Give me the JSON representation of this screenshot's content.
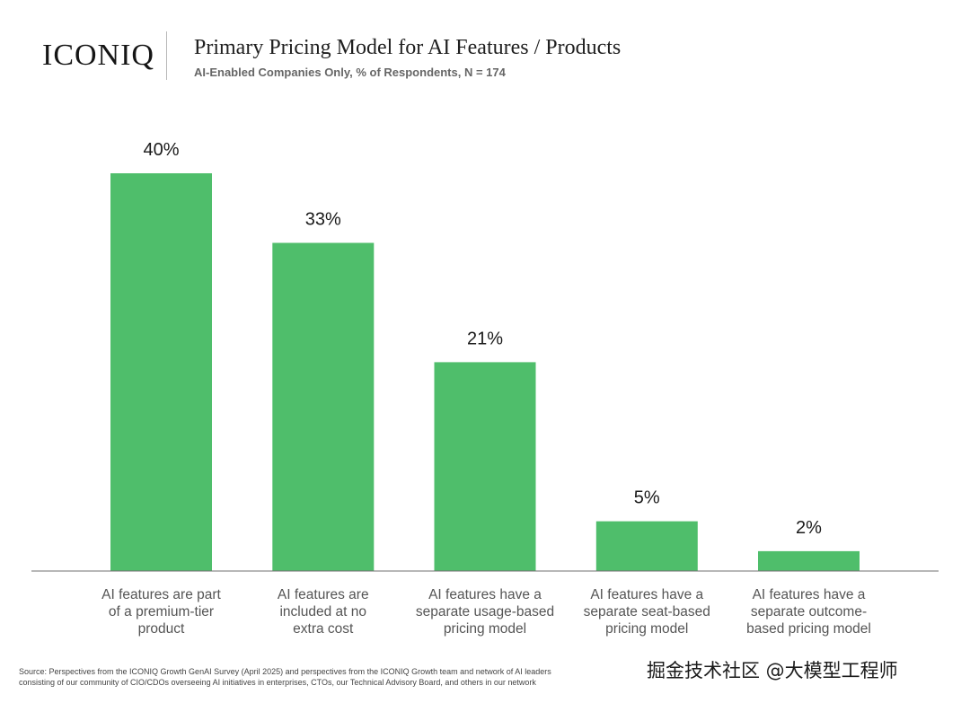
{
  "header": {
    "logo": "ICONIQ",
    "title": "Primary Pricing Model for AI Features / Products",
    "subtitle": "AI-Enabled Companies Only, % of Respondents, N = 174"
  },
  "chart_data": {
    "type": "bar",
    "title": "Primary Pricing Model for AI Features / Products",
    "subtitle": "AI-Enabled Companies Only, % of Respondents, N = 174",
    "categories": [
      [
        "AI features are part",
        "of a premium-tier",
        "product"
      ],
      [
        "AI features are",
        "included at no",
        "extra cost"
      ],
      [
        "AI features have a",
        "separate usage-based",
        "pricing model"
      ],
      [
        "AI features have a",
        "separate seat-based",
        "pricing model"
      ],
      [
        "AI features have a",
        "separate outcome-",
        "based pricing model"
      ]
    ],
    "values": [
      40,
      33,
      21,
      5,
      2
    ],
    "value_labels": [
      "40%",
      "33%",
      "21%",
      "5%",
      "2%"
    ],
    "ylim": [
      0,
      40
    ],
    "grid": false,
    "bar_color": "#4fbe6b"
  },
  "footer": {
    "source_line1": "Source: Perspectives from the ICONIQ Growth GenAI Survey (April 2025) and perspectives from the ICONIQ Growth team and network of AI leaders",
    "source_line2": "consisting of our community of CIO/CDOs overseeing AI initiatives in enterprises, CTOs, our Technical Advisory Board, and others in our network"
  },
  "watermark": {
    "text": "掘金技术社区 @大模型工程师"
  }
}
